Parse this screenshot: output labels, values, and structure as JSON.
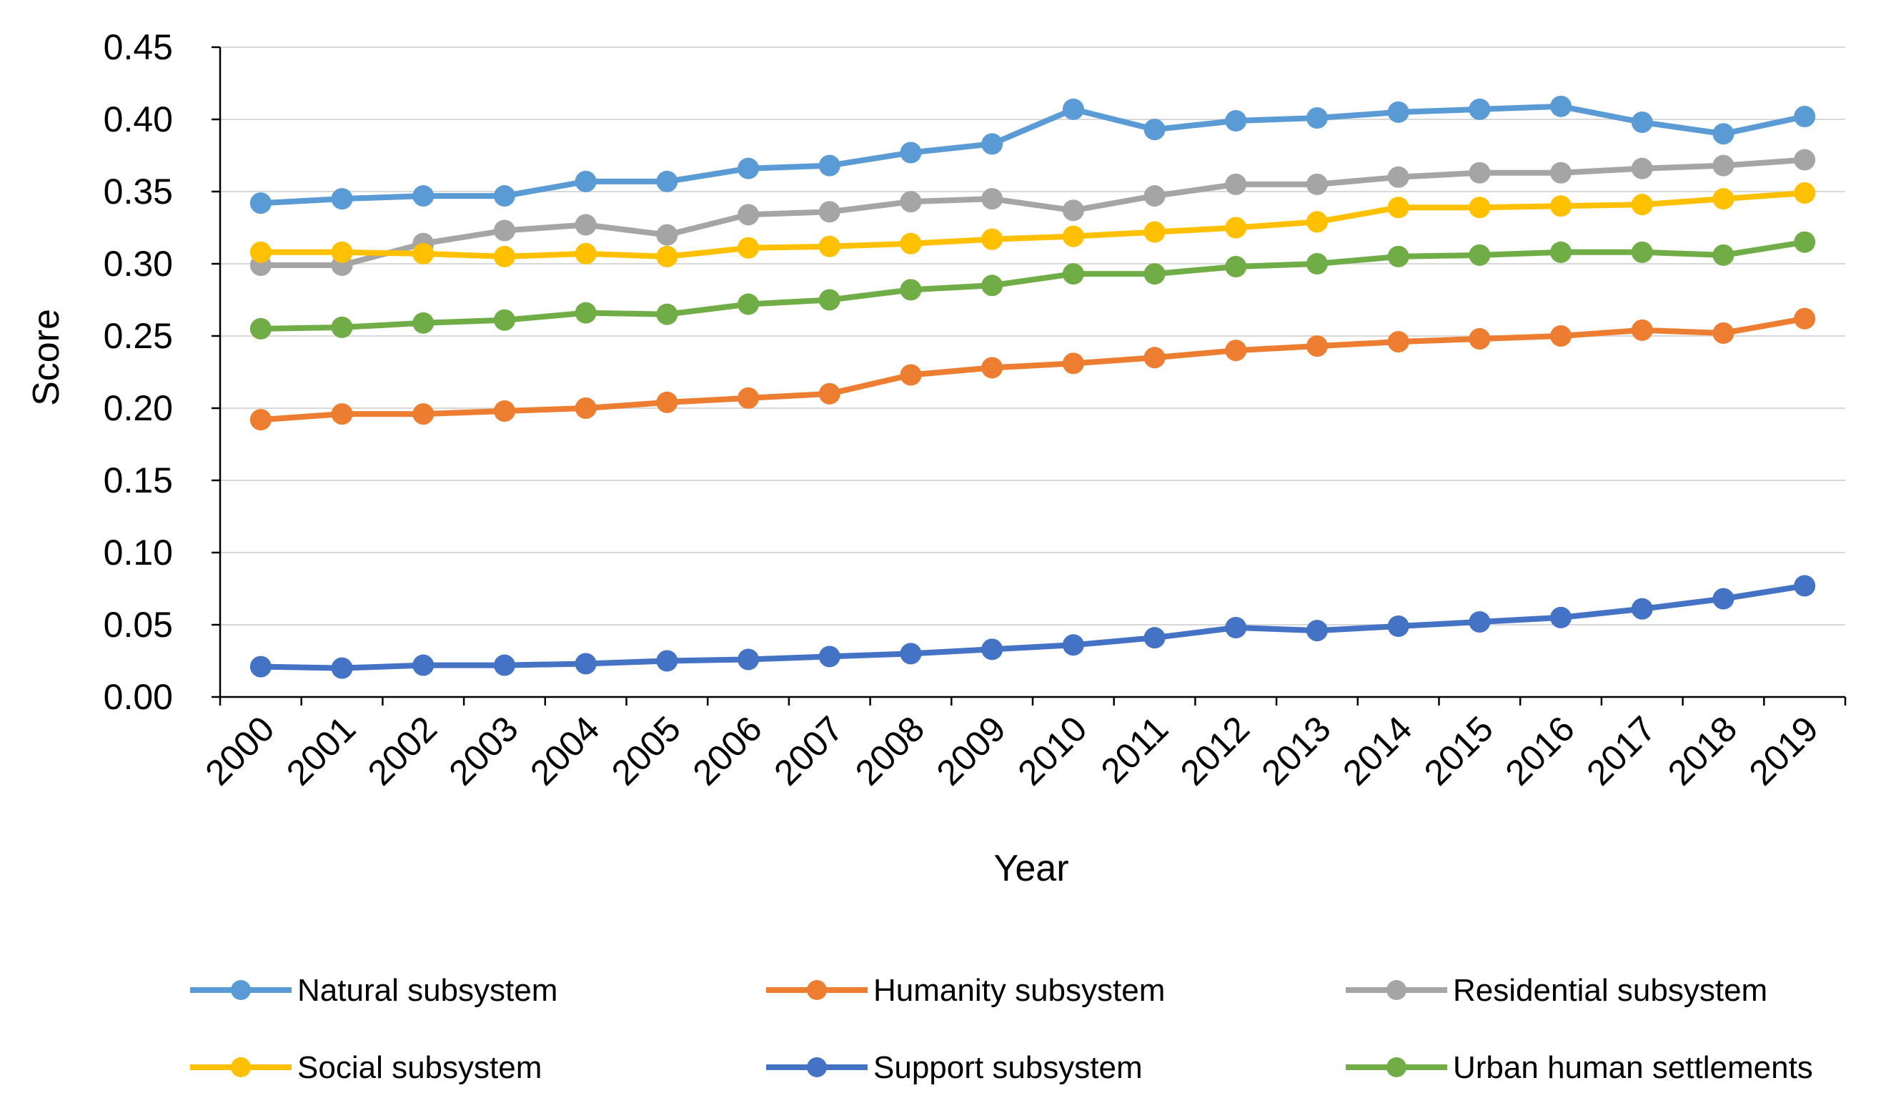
{
  "chart_data": {
    "type": "line",
    "title": "",
    "xlabel": "Year",
    "ylabel": "Score",
    "ylim": [
      0,
      0.45
    ],
    "yticks": [
      "0.00",
      "0.05",
      "0.10",
      "0.15",
      "0.20",
      "0.25",
      "0.30",
      "0.35",
      "0.40",
      "0.45"
    ],
    "ytick_values": [
      0,
      0.05,
      0.1,
      0.15,
      0.2,
      0.25,
      0.3,
      0.35,
      0.4,
      0.45
    ],
    "grid": true,
    "legend_position": "bottom",
    "categories": [
      "2000",
      "2001",
      "2002",
      "2003",
      "2004",
      "2005",
      "2006",
      "2007",
      "2008",
      "2009",
      "2010",
      "2011",
      "2012",
      "2013",
      "2014",
      "2015",
      "2016",
      "2017",
      "2018",
      "2019"
    ],
    "series": [
      {
        "name": "Natural subsystem",
        "color": "#5B9BD5",
        "values": [
          0.342,
          0.345,
          0.347,
          0.347,
          0.357,
          0.357,
          0.366,
          0.368,
          0.377,
          0.383,
          0.407,
          0.393,
          0.399,
          0.401,
          0.405,
          0.407,
          0.409,
          0.398,
          0.39,
          0.402
        ]
      },
      {
        "name": "Humanity subsystem",
        "color": "#ED7D31",
        "values": [
          0.192,
          0.196,
          0.196,
          0.198,
          0.2,
          0.204,
          0.207,
          0.21,
          0.223,
          0.228,
          0.231,
          0.235,
          0.24,
          0.243,
          0.246,
          0.248,
          0.25,
          0.254,
          0.252,
          0.262
        ]
      },
      {
        "name": "Residential subsystem",
        "color": "#A5A5A5",
        "values": [
          0.299,
          0.299,
          0.314,
          0.323,
          0.327,
          0.32,
          0.334,
          0.336,
          0.343,
          0.345,
          0.337,
          0.347,
          0.355,
          0.355,
          0.36,
          0.363,
          0.363,
          0.366,
          0.368,
          0.372
        ]
      },
      {
        "name": "Social subsystem",
        "color": "#FFC000",
        "values": [
          0.308,
          0.308,
          0.307,
          0.305,
          0.307,
          0.305,
          0.311,
          0.312,
          0.314,
          0.317,
          0.319,
          0.322,
          0.325,
          0.329,
          0.339,
          0.339,
          0.34,
          0.341,
          0.345,
          0.349
        ]
      },
      {
        "name": "Support subsystem",
        "color": "#4472C4",
        "values": [
          0.021,
          0.02,
          0.022,
          0.022,
          0.023,
          0.025,
          0.026,
          0.028,
          0.03,
          0.033,
          0.036,
          0.041,
          0.048,
          0.046,
          0.049,
          0.052,
          0.055,
          0.061,
          0.068,
          0.077
        ]
      },
      {
        "name": "Urban human settlements",
        "color": "#70AD47",
        "values": [
          0.255,
          0.256,
          0.259,
          0.261,
          0.266,
          0.265,
          0.272,
          0.275,
          0.282,
          0.285,
          0.293,
          0.293,
          0.298,
          0.3,
          0.305,
          0.306,
          0.308,
          0.308,
          0.306,
          0.315
        ]
      }
    ]
  }
}
